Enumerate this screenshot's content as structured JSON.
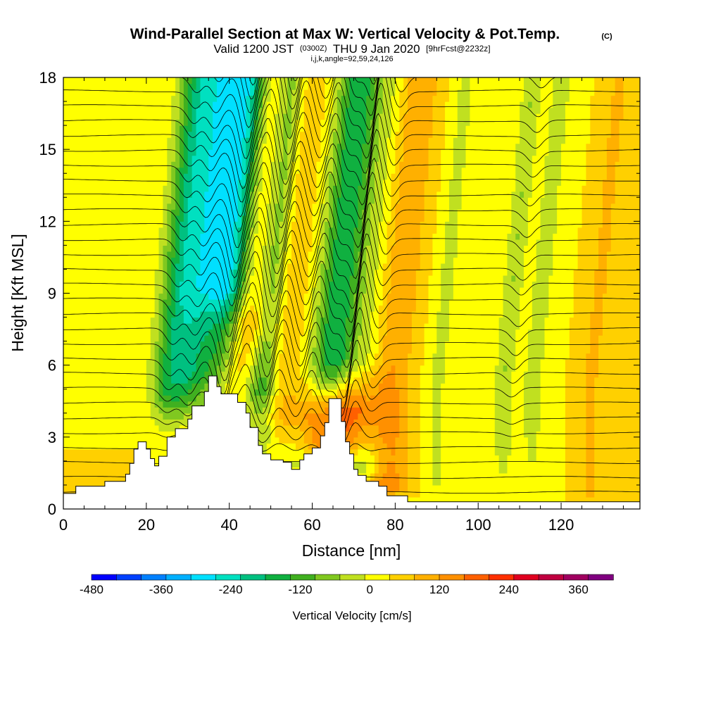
{
  "chart_data": {
    "type": "heatmap",
    "title": "Wind-Parallel Section at Max W: Vertical Velocity & Pot.Temp.",
    "title_mark": "(C)",
    "subtitle": {
      "valid_prefix": "Valid 1200 JST",
      "utc": "(0300Z)",
      "valid_suffix": "THU 9 Jan 2020",
      "forecast": "[9hrFcst@2232z]"
    },
    "indices": "i,j,k,angle=92,59,24,126",
    "xlabel": "Distance [nm]",
    "ylabel": "Height [Kft MSL]",
    "xlim": [
      0,
      139
    ],
    "ylim": [
      0,
      18
    ],
    "x_ticks": [
      "0",
      "20",
      "40",
      "60",
      "80",
      "100",
      "120"
    ],
    "y_ticks": [
      "0",
      "3",
      "6",
      "9",
      "12",
      "15",
      "18"
    ],
    "colorbar": {
      "label": "Vertical Velocity [cm/s]",
      "min": -480,
      "max": 420,
      "step": 40,
      "tick_labels": [
        "-480",
        "-360",
        "-240",
        "-120",
        "0",
        "120",
        "240",
        "360"
      ],
      "colors": [
        "#0000ff",
        "#0040ff",
        "#0080ff",
        "#00b0ff",
        "#00e0ff",
        "#00e0c0",
        "#00c080",
        "#10b040",
        "#40b020",
        "#80c820",
        "#c0e020",
        "#ffff00",
        "#ffd000",
        "#ffb000",
        "#ff9000",
        "#ff6000",
        "#ff3000",
        "#e00020",
        "#c00040",
        "#a00060",
        "#800080"
      ]
    },
    "bands": [
      {
        "x": 21,
        "w": 160,
        "xmin": 0,
        "ymin": 0
      },
      {
        "x": 25,
        "w": -110,
        "xmin": 4.5,
        "ymin": 2.5
      },
      {
        "x": 30,
        "w": -160,
        "xmin": 6,
        "ymin": 2.5
      },
      {
        "x": 34,
        "w": 140,
        "xmin": 6,
        "ymin": 3.5
      },
      {
        "x": 37.5,
        "w": -430,
        "xmin": 8,
        "ymin": 5.5
      },
      {
        "x": 44,
        "w": 330,
        "xmin": 5.5,
        "ymin": 5
      },
      {
        "x": 48,
        "w": -300,
        "xmin": 5,
        "ymin": 3.5
      },
      {
        "x": 52,
        "w": 230,
        "xmin": 5,
        "ymin": 2.5
      },
      {
        "x": 55.5,
        "w": -200,
        "xmin": 5.5,
        "ymin": 2.5
      },
      {
        "x": 59,
        "w": 230,
        "xmin": 6,
        "ymin": 2
      },
      {
        "x": 63,
        "w": -180,
        "xmin": 5.5,
        "ymin": 2.5
      },
      {
        "x": 67.5,
        "w": -380,
        "xmin": 8,
        "ymin": 3.5
      },
      {
        "x": 69.5,
        "w": 390,
        "xmin": 7,
        "ymin": 2.5
      },
      {
        "x": 73,
        "w": -140,
        "xmin": 6,
        "ymin": 1.5
      },
      {
        "x": 78,
        "w": 120,
        "xmin": 5,
        "ymin": 0.5
      },
      {
        "x": 90,
        "w": -50,
        "xmin": 3,
        "ymin": 1
      },
      {
        "x": 106,
        "w": -80,
        "xmin": 2.5,
        "ymin": 4
      },
      {
        "x": 113,
        "w": -70,
        "xmin": 2.5,
        "ymin": 5
      },
      {
        "x": 127,
        "w": 60,
        "xmin": 2,
        "ymin": 0.3
      }
    ],
    "terrain": [
      [
        0,
        0.65
      ],
      [
        3,
        0.65
      ],
      [
        3,
        0.95
      ],
      [
        10,
        0.95
      ],
      [
        10,
        1.15
      ],
      [
        15,
        1.15
      ],
      [
        15,
        1.45
      ],
      [
        16,
        1.45
      ],
      [
        16,
        1.9
      ],
      [
        17,
        1.9
      ],
      [
        17,
        2.5
      ],
      [
        18,
        2.5
      ],
      [
        18,
        2.8
      ],
      [
        20,
        2.8
      ],
      [
        20,
        2.5
      ],
      [
        21,
        2.5
      ],
      [
        21,
        2.1
      ],
      [
        22,
        2.1
      ],
      [
        22,
        1.8
      ],
      [
        23,
        1.8
      ],
      [
        23,
        2.2
      ],
      [
        25,
        2.2
      ],
      [
        25,
        3.0
      ],
      [
        27,
        3.0
      ],
      [
        27,
        3.35
      ],
      [
        30,
        3.35
      ],
      [
        30,
        3.75
      ],
      [
        31,
        3.75
      ],
      [
        31,
        4.3
      ],
      [
        34,
        4.3
      ],
      [
        34,
        4.9
      ],
      [
        35,
        4.9
      ],
      [
        35,
        5.55
      ],
      [
        37,
        5.55
      ],
      [
        37,
        5.1
      ],
      [
        38,
        5.1
      ],
      [
        38,
        4.8
      ],
      [
        42,
        4.8
      ],
      [
        42,
        4.45
      ],
      [
        44,
        4.45
      ],
      [
        44,
        4.0
      ],
      [
        45,
        4.0
      ],
      [
        45,
        3.4
      ],
      [
        47,
        3.4
      ],
      [
        47,
        2.65
      ],
      [
        48,
        2.65
      ],
      [
        48,
        2.3
      ],
      [
        50,
        2.3
      ],
      [
        50,
        2.05
      ],
      [
        53,
        2.05
      ],
      [
        53,
        1.95
      ],
      [
        55,
        1.95
      ],
      [
        55,
        1.65
      ],
      [
        57,
        1.65
      ],
      [
        57,
        2.05
      ],
      [
        58,
        2.05
      ],
      [
        58,
        2.3
      ],
      [
        60,
        2.3
      ],
      [
        60,
        2.55
      ],
      [
        62,
        2.55
      ],
      [
        62,
        3.05
      ],
      [
        63,
        3.05
      ],
      [
        63,
        3.6
      ],
      [
        64,
        3.6
      ],
      [
        64,
        4.6
      ],
      [
        67,
        4.6
      ],
      [
        67,
        3.65
      ],
      [
        68,
        3.65
      ],
      [
        68,
        2.8
      ],
      [
        69,
        2.8
      ],
      [
        69,
        2.3
      ],
      [
        70,
        2.3
      ],
      [
        70,
        1.65
      ],
      [
        71,
        1.65
      ],
      [
        71,
        1.4
      ],
      [
        73,
        1.4
      ],
      [
        73,
        1.15
      ],
      [
        76,
        1.15
      ],
      [
        76,
        0.95
      ],
      [
        78,
        0.95
      ],
      [
        78,
        0.55
      ],
      [
        83,
        0.55
      ],
      [
        83,
        0.3
      ],
      [
        139,
        0.3
      ]
    ],
    "isentropes": {
      "count": 32,
      "surface_theta": 0.04,
      "slope": 0.072,
      "waves": [
        {
          "x": 25,
          "a": -0.7
        },
        {
          "x": 30,
          "a": -0.9
        },
        {
          "x": 37.5,
          "a": -2.2
        },
        {
          "x": 44,
          "a": 1.4
        },
        {
          "x": 48,
          "a": -1.5
        },
        {
          "x": 52,
          "a": 1.1
        },
        {
          "x": 56,
          "a": -1.0
        },
        {
          "x": 60,
          "a": 1.1
        },
        {
          "x": 63,
          "a": -0.9
        },
        {
          "x": 67.5,
          "a": -2.0
        },
        {
          "x": 70,
          "a": 2.0
        },
        {
          "x": 74,
          "a": -0.7
        },
        {
          "x": 108,
          "a": -0.5
        }
      ]
    }
  }
}
